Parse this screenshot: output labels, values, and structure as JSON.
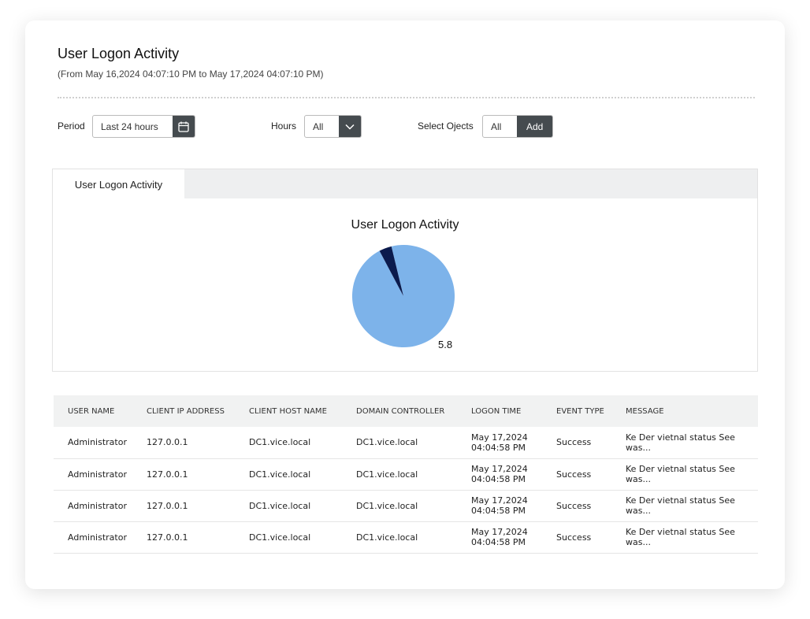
{
  "header": {
    "title": "User Logon Activity",
    "subtitle": "(From May 16,2024 04:07:10 PM to May 17,2024 04:07:10 PM)"
  },
  "filters": {
    "period_label": "Period",
    "period_value": "Last 24 hours",
    "period_icon": "calendar-icon",
    "hours_label": "Hours",
    "hours_value": "All",
    "hours_icon": "chevron-down-icon",
    "objects_label": "Select Ojects",
    "objects_all": "All",
    "objects_add": "Add"
  },
  "tab": {
    "label": "User Logon Activity"
  },
  "chart_data": {
    "type": "pie",
    "title": "User Logon Activity",
    "slices": [
      {
        "value": 5.8,
        "label": "5.8",
        "color": "#7db3ea"
      },
      {
        "value": 0.24,
        "label": "",
        "color": "#0b1b4d"
      }
    ]
  },
  "table": {
    "columns": [
      "USER NAME",
      "CLIENT IP ADDRESS",
      "CLIENT HOST NAME",
      "DOMAIN CONTROLLER",
      "LOGON TIME",
      "EVENT TYPE",
      "MESSAGE"
    ],
    "rows": [
      [
        "Administrator",
        "127.0.0.1",
        "DC1.vice.local",
        "DC1.vice.local",
        "May 17,2024",
        "04:04:58 PM",
        "Success",
        "Ke Der vietnal status See was..."
      ],
      [
        "Administrator",
        "127.0.0.1",
        "DC1.vice.local",
        "DC1.vice.local",
        "May 17,2024",
        "04:04:58 PM",
        "Success",
        "Ke Der vietnal status See was..."
      ],
      [
        "Administrator",
        "127.0.0.1",
        "DC1.vice.local",
        "DC1.vice.local",
        "May 17,2024",
        "04:04:58 PM",
        "Success",
        "Ke Der vietnal status See was..."
      ],
      [
        "Administrator",
        "127.0.0.1",
        "DC1.vice.local",
        "DC1.vice.local",
        "May 17,2024",
        "04:04:58 PM",
        "Success",
        "Ke Der vietnal status See was..."
      ]
    ]
  }
}
